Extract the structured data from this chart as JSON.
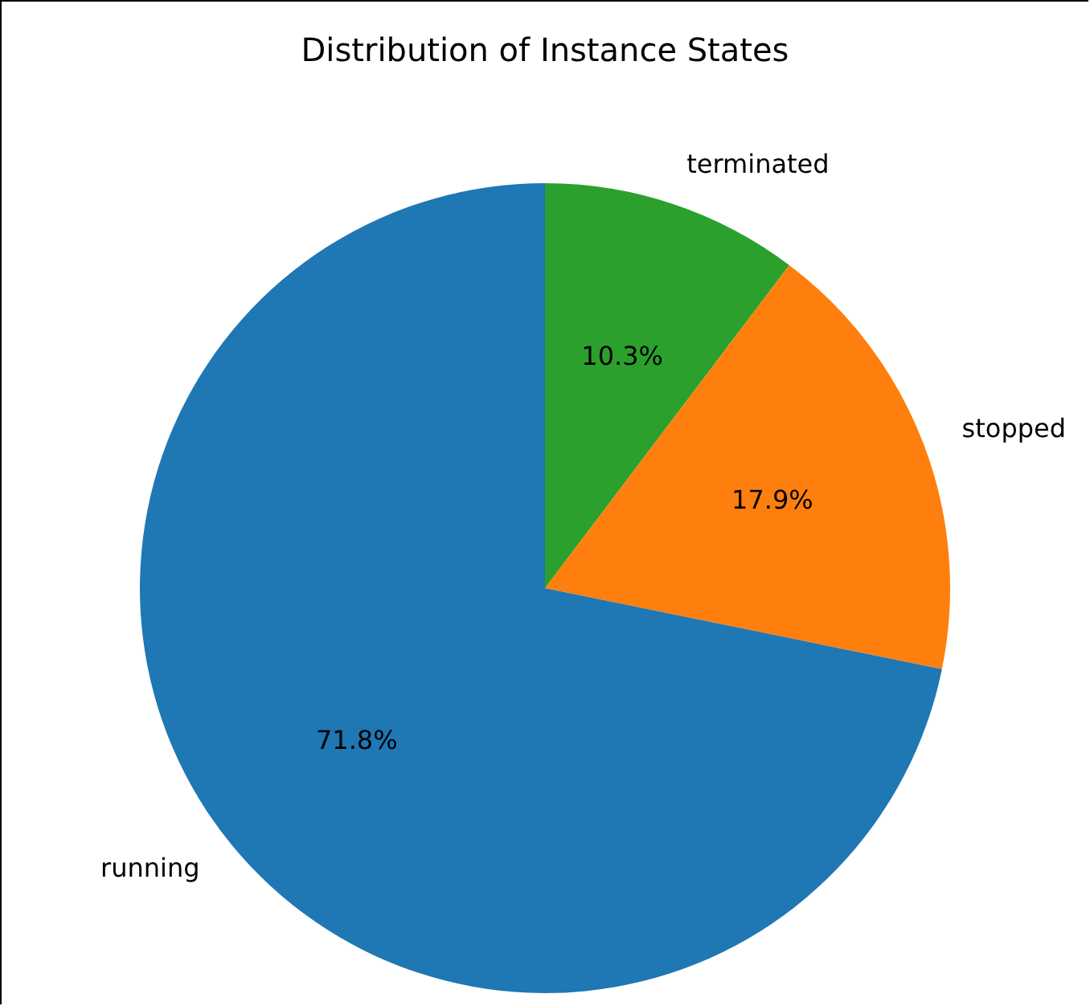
{
  "chart_data": {
    "type": "pie",
    "title": "Distribution of Instance States",
    "categories": [
      "running",
      "stopped",
      "terminated"
    ],
    "values": [
      71.8,
      17.9,
      10.3
    ],
    "colors": [
      "#1f77b4",
      "#ff7f0e",
      "#2ca02c"
    ],
    "value_labels": [
      "71.8%",
      "17.9%",
      "10.3%"
    ],
    "legend": false
  }
}
